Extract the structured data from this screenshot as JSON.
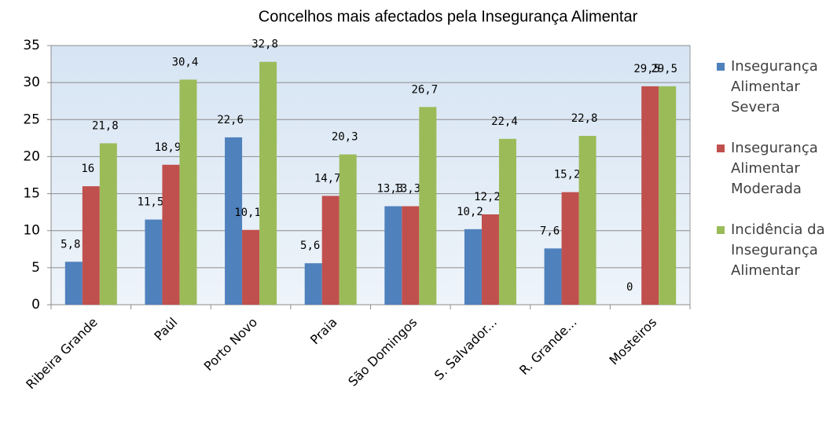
{
  "chart_data": {
    "type": "bar",
    "title": "Concelhos mais afectados pela Insegurança Alimentar",
    "categories": [
      "Ribeira Grande",
      "Paúl",
      "Porto Novo",
      "Praia",
      "São Domingos",
      "S. Salvador...",
      "R. Grande...",
      "Mosteiros"
    ],
    "series": [
      {
        "name": "Insegurança Alimentar Severa",
        "color": "#4f81bd",
        "values": [
          5.8,
          11.5,
          22.6,
          5.6,
          13.3,
          10.2,
          7.6,
          0
        ],
        "value_labels": [
          "5,8",
          "11,5",
          "22,6",
          "5,6",
          "13,3",
          "10,2",
          "7,6",
          "0"
        ]
      },
      {
        "name": "Insegurança Alimentar Moderada",
        "color": "#c0504d",
        "values": [
          16,
          18.9,
          10.1,
          14.7,
          13.3,
          12.2,
          15.2,
          29.5
        ],
        "value_labels": [
          "16",
          "18,9",
          "10,1",
          "14,7",
          "13,3",
          "12,2",
          "15,2",
          "29,5"
        ]
      },
      {
        "name": "Incidência da Insegurança Alimentar",
        "color": "#9bbb59",
        "values": [
          21.8,
          30.4,
          32.8,
          20.3,
          26.7,
          22.4,
          22.8,
          29.5
        ],
        "value_labels": [
          "21,8",
          "30,4",
          "32,8",
          "20,3",
          "26,7",
          "22,4",
          "22,8",
          "29,5"
        ]
      }
    ],
    "ylim": [
      0,
      35
    ],
    "yticks": [
      0,
      5,
      10,
      15,
      20,
      25,
      30,
      35
    ],
    "grid": true,
    "legend": "right"
  }
}
